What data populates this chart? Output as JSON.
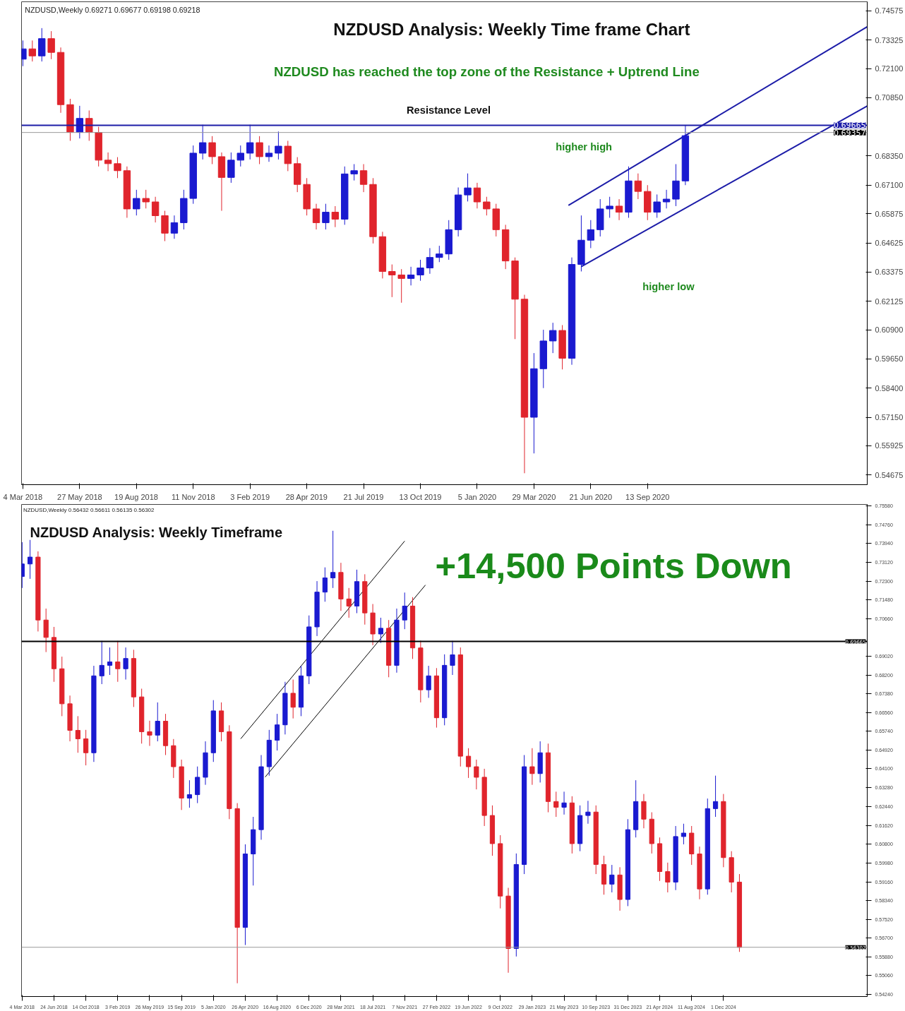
{
  "chart_data": [
    {
      "type": "candlestick",
      "title": "NZDUSD Analysis: Weekly Time frame Chart",
      "annotations": [
        "NZDUSD,Weekly  0.69271 0.69677 0.69198 0.69218",
        "NZDUSD has reached the top zone of the Resistance + Uptrend Line",
        "Resistance Level",
        "higher high",
        "higher low"
      ],
      "xlim": [
        "2018-03-02",
        "2021-08-04"
      ],
      "ylim": [
        0.5426,
        0.7496
      ],
      "xticks": [
        {
          "value": "2018-03-04",
          "label": "4 Mar 2018"
        },
        {
          "value": "2018-05-27",
          "label": "27 May 2018"
        },
        {
          "value": "2018-08-19",
          "label": "19 Aug 2018"
        },
        {
          "value": "2018-11-11",
          "label": "11 Nov 2018"
        },
        {
          "value": "2019-02-03",
          "label": "3 Feb 2019"
        },
        {
          "value": "2019-04-28",
          "label": "28 Apr 2019"
        },
        {
          "value": "2019-07-21",
          "label": "21 Jul 2019"
        },
        {
          "value": "2019-10-13",
          "label": "13 Oct 2019"
        },
        {
          "value": "2020-01-05",
          "label": "5 Jan 2020"
        },
        {
          "value": "2020-03-29",
          "label": "29 Mar 2020"
        },
        {
          "value": "2020-06-21",
          "label": "21 Jun 2020"
        },
        {
          "value": "2020-09-13",
          "label": "13 Sep 2020"
        }
      ],
      "yticks": [
        {
          "value": 0.74575,
          "label": "0.74575"
        },
        {
          "value": 0.73325,
          "label": "0.73325"
        },
        {
          "value": 0.721,
          "label": "0.72100"
        },
        {
          "value": 0.7085,
          "label": "0.70850"
        },
        {
          "value": 0.6835,
          "label": "0.68350"
        },
        {
          "value": 0.671,
          "label": "0.67100"
        },
        {
          "value": 0.65875,
          "label": "0.65875"
        },
        {
          "value": 0.64625,
          "label": "0.64625"
        },
        {
          "value": 0.63375,
          "label": "0.63375"
        },
        {
          "value": 0.62125,
          "label": "0.62125"
        },
        {
          "value": 0.609,
          "label": "0.60900"
        },
        {
          "value": 0.5965,
          "label": "0.59650"
        },
        {
          "value": 0.584,
          "label": "0.58400"
        },
        {
          "value": 0.5715,
          "label": "0.57150"
        },
        {
          "value": 0.55925,
          "label": "0.55925"
        },
        {
          "value": 0.54675,
          "label": "0.54675"
        }
      ],
      "ref_lines": [
        {
          "axis": "y",
          "value": 0.69665,
          "label": "0.69665",
          "color": "#1c1ca8"
        },
        {
          "axis": "y",
          "value": 0.69357,
          "label": "0.69357",
          "color": "#9a9a9a"
        }
      ],
      "series": [
        {
          "type": "line",
          "color": "#1c1ca8",
          "x": [
            "2020-05-19",
            "2021-08-04"
          ],
          "values": [
            0.6623,
            0.7389
          ]
        },
        {
          "type": "line",
          "color": "#1c1ca8",
          "x": [
            "2020-06-07",
            "2021-08-04"
          ],
          "values": [
            0.6361,
            0.7049
          ]
        }
      ],
      "x": [
        "2018-03-04",
        "2018-03-18",
        "2018-04-01",
        "2018-04-15",
        "2018-04-29",
        "2018-05-13",
        "2018-05-27",
        "2018-06-10",
        "2018-06-24",
        "2018-07-08",
        "2018-07-22",
        "2018-08-05",
        "2018-08-19",
        "2018-09-02",
        "2018-09-16",
        "2018-09-30",
        "2018-10-14",
        "2018-10-28",
        "2018-11-11",
        "2018-11-25",
        "2018-12-09",
        "2018-12-23",
        "2019-01-06",
        "2019-01-20",
        "2019-02-03",
        "2019-02-17",
        "2019-03-03",
        "2019-03-17",
        "2019-03-31",
        "2019-04-14",
        "2019-04-28",
        "2019-05-12",
        "2019-05-26",
        "2019-06-09",
        "2019-06-23",
        "2019-07-07",
        "2019-07-21",
        "2019-08-04",
        "2019-08-18",
        "2019-09-01",
        "2019-09-15",
        "2019-09-29",
        "2019-10-13",
        "2019-10-27",
        "2019-11-10",
        "2019-11-24",
        "2019-12-08",
        "2019-12-22",
        "2020-01-05",
        "2020-01-19",
        "2020-02-02",
        "2020-02-16",
        "2020-03-01",
        "2020-03-15",
        "2020-03-29",
        "2020-04-12",
        "2020-04-26",
        "2020-05-10",
        "2020-05-24",
        "2020-06-07",
        "2020-06-21",
        "2020-07-05",
        "2020-07-19",
        "2020-08-02",
        "2020-08-16",
        "2020-08-30",
        "2020-09-13",
        "2020-09-27",
        "2020-10-11",
        "2020-10-25",
        "2020-11-08"
      ],
      "ohlc": [
        [
          0.725,
          0.733,
          0.722,
          0.7294
        ],
        [
          0.7294,
          0.733,
          0.724,
          0.7264
        ],
        [
          0.7264,
          0.7383,
          0.724,
          0.7338
        ],
        [
          0.7338,
          0.737,
          0.725,
          0.7279
        ],
        [
          0.7279,
          0.73,
          0.702,
          0.7055
        ],
        [
          0.7055,
          0.708,
          0.69,
          0.6936
        ],
        [
          0.6936,
          0.705,
          0.691,
          0.6996
        ],
        [
          0.6996,
          0.703,
          0.69,
          0.6936
        ],
        [
          0.6936,
          0.696,
          0.679,
          0.6817
        ],
        [
          0.6817,
          0.685,
          0.677,
          0.6802
        ],
        [
          0.6802,
          0.683,
          0.674,
          0.6772
        ],
        [
          0.6772,
          0.679,
          0.657,
          0.6608
        ],
        [
          0.6608,
          0.669,
          0.658,
          0.6653
        ],
        [
          0.6653,
          0.669,
          0.661,
          0.6638
        ],
        [
          0.6638,
          0.666,
          0.655,
          0.6579
        ],
        [
          0.6579,
          0.66,
          0.647,
          0.6504
        ],
        [
          0.6504,
          0.658,
          0.648,
          0.6549
        ],
        [
          0.6549,
          0.669,
          0.652,
          0.6653
        ],
        [
          0.6653,
          0.688,
          0.663,
          0.6847
        ],
        [
          0.6847,
          0.6969,
          0.682,
          0.6892
        ],
        [
          0.6892,
          0.692,
          0.68,
          0.6832
        ],
        [
          0.6832,
          0.685,
          0.66,
          0.6743
        ],
        [
          0.6743,
          0.685,
          0.672,
          0.6817
        ],
        [
          0.6817,
          0.688,
          0.679,
          0.6847
        ],
        [
          0.6847,
          0.6969,
          0.682,
          0.6892
        ],
        [
          0.6892,
          0.692,
          0.68,
          0.6832
        ],
        [
          0.6832,
          0.688,
          0.681,
          0.6847
        ],
        [
          0.6847,
          0.694,
          0.682,
          0.6877
        ],
        [
          0.6877,
          0.69,
          0.677,
          0.6802
        ],
        [
          0.6802,
          0.683,
          0.668,
          0.6713
        ],
        [
          0.6713,
          0.674,
          0.658,
          0.6608
        ],
        [
          0.6608,
          0.663,
          0.652,
          0.6549
        ],
        [
          0.6549,
          0.663,
          0.652,
          0.6594
        ],
        [
          0.6594,
          0.662,
          0.653,
          0.6564
        ],
        [
          0.6564,
          0.679,
          0.654,
          0.6758
        ],
        [
          0.6758,
          0.68,
          0.673,
          0.6772
        ],
        [
          0.6772,
          0.68,
          0.668,
          0.6713
        ],
        [
          0.6713,
          0.674,
          0.646,
          0.6489
        ],
        [
          0.6489,
          0.651,
          0.631,
          0.634
        ],
        [
          0.634,
          0.637,
          0.623,
          0.6325
        ],
        [
          0.6325,
          0.635,
          0.6206,
          0.631
        ],
        [
          0.631,
          0.636,
          0.628,
          0.6325
        ],
        [
          0.6325,
          0.639,
          0.63,
          0.6355
        ],
        [
          0.6355,
          0.644,
          0.633,
          0.64
        ],
        [
          0.64,
          0.645,
          0.638,
          0.6415
        ],
        [
          0.6415,
          0.656,
          0.639,
          0.6519
        ],
        [
          0.6519,
          0.67,
          0.649,
          0.6668
        ],
        [
          0.6668,
          0.676,
          0.664,
          0.6698
        ],
        [
          0.6698,
          0.672,
          0.661,
          0.6638
        ],
        [
          0.6638,
          0.666,
          0.658,
          0.6608
        ],
        [
          0.6608,
          0.663,
          0.649,
          0.6519
        ],
        [
          0.6519,
          0.654,
          0.635,
          0.6385
        ],
        [
          0.6385,
          0.64,
          0.605,
          0.6221
        ],
        [
          0.6221,
          0.624,
          0.5475,
          0.5715
        ],
        [
          0.5715,
          0.599,
          0.556,
          0.5923
        ],
        [
          0.5923,
          0.609,
          0.584,
          0.6042
        ],
        [
          0.6042,
          0.612,
          0.599,
          0.6087
        ],
        [
          0.6087,
          0.611,
          0.592,
          0.5968
        ],
        [
          0.5968,
          0.64,
          0.594,
          0.637
        ],
        [
          0.637,
          0.658,
          0.634,
          0.6474
        ],
        [
          0.6474,
          0.656,
          0.644,
          0.6519
        ],
        [
          0.6519,
          0.665,
          0.649,
          0.6608
        ],
        [
          0.6608,
          0.666,
          0.657,
          0.662
        ],
        [
          0.662,
          0.665,
          0.656,
          0.6594
        ],
        [
          0.6594,
          0.679,
          0.657,
          0.6728
        ],
        [
          0.6728,
          0.676,
          0.665,
          0.6683
        ],
        [
          0.6683,
          0.671,
          0.656,
          0.6594
        ],
        [
          0.6594,
          0.667,
          0.657,
          0.6638
        ],
        [
          0.6638,
          0.669,
          0.661,
          0.665
        ],
        [
          0.665,
          0.68,
          0.662,
          0.6728
        ],
        [
          0.6728,
          0.6968,
          0.671,
          0.6922
        ]
      ]
    },
    {
      "type": "candlestick",
      "title": "NZDUSD Analysis: Weekly Timeframe",
      "annotations": [
        "NZDUSD,Weekly  0.56432 0.56611 0.56135 0.56302",
        "+14,500 Points Down"
      ],
      "xlim": [
        "2018-03-02",
        "2026-04-20"
      ],
      "ylim": [
        0.5415,
        0.7565
      ],
      "xticks": [
        {
          "value": "2018-03-04",
          "label": "4 Mar 2018"
        },
        {
          "value": "2018-06-24",
          "label": "24 Jun 2018"
        },
        {
          "value": "2018-10-14",
          "label": "14 Oct 2018"
        },
        {
          "value": "2019-02-03",
          "label": "3 Feb 2019"
        },
        {
          "value": "2019-05-26",
          "label": "26 May 2019"
        },
        {
          "value": "2019-09-15",
          "label": "15 Sep 2019"
        },
        {
          "value": "2020-01-05",
          "label": "5 Jan 2020"
        },
        {
          "value": "2020-04-26",
          "label": "26 Apr 2020"
        },
        {
          "value": "2020-08-16",
          "label": "16 Aug 2020"
        },
        {
          "value": "2020-12-06",
          "label": "6 Dec 2020"
        },
        {
          "value": "2021-03-28",
          "label": "28 Mar 2021"
        },
        {
          "value": "2021-07-18",
          "label": "18 Jul 2021"
        },
        {
          "value": "2021-11-07",
          "label": "7 Nov 2021"
        },
        {
          "value": "2022-02-27",
          "label": "27 Feb 2022"
        },
        {
          "value": "2022-06-19",
          "label": "19 Jun 2022"
        },
        {
          "value": "2022-10-09",
          "label": "9 Oct 2022"
        },
        {
          "value": "2023-01-29",
          "label": "29 Jan 2023"
        },
        {
          "value": "2023-05-21",
          "label": "21 May 2023"
        },
        {
          "value": "2023-09-10",
          "label": "10 Sep 2023"
        },
        {
          "value": "2023-12-31",
          "label": "31 Dec 2023"
        },
        {
          "value": "2024-04-21",
          "label": "21 Apr 2024"
        },
        {
          "value": "2024-08-11",
          "label": "11 Aug 2024"
        },
        {
          "value": "2024-12-01",
          "label": "1 Dec 2024"
        }
      ],
      "yticks": [
        {
          "value": 0.7558,
          "label": "0.75580"
        },
        {
          "value": 0.7476,
          "label": "0.74760"
        },
        {
          "value": 0.7394,
          "label": "0.73940"
        },
        {
          "value": 0.7312,
          "label": "0.73120"
        },
        {
          "value": 0.723,
          "label": "0.72300"
        },
        {
          "value": 0.7148,
          "label": "0.71480"
        },
        {
          "value": 0.7066,
          "label": "0.70660"
        },
        {
          "value": 0.6902,
          "label": "0.69020"
        },
        {
          "value": 0.682,
          "label": "0.68200"
        },
        {
          "value": 0.6738,
          "label": "0.67380"
        },
        {
          "value": 0.6656,
          "label": "0.66560"
        },
        {
          "value": 0.6574,
          "label": "0.65740"
        },
        {
          "value": 0.6492,
          "label": "0.64920"
        },
        {
          "value": 0.641,
          "label": "0.64100"
        },
        {
          "value": 0.6328,
          "label": "0.63280"
        },
        {
          "value": 0.6244,
          "label": "0.62440"
        },
        {
          "value": 0.6162,
          "label": "0.61620"
        },
        {
          "value": 0.608,
          "label": "0.60800"
        },
        {
          "value": 0.5998,
          "label": "0.59980"
        },
        {
          "value": 0.5916,
          "label": "0.59160"
        },
        {
          "value": 0.5834,
          "label": "0.58340"
        },
        {
          "value": 0.5752,
          "label": "0.57520"
        },
        {
          "value": 0.567,
          "label": "0.56700"
        },
        {
          "value": 0.5588,
          "label": "0.55880"
        },
        {
          "value": 0.5506,
          "label": "0.55060"
        },
        {
          "value": 0.5424,
          "label": "0.54240"
        }
      ],
      "ref_lines": [
        {
          "axis": "y",
          "value": 0.69665,
          "label": "0.69665",
          "color": "#000000"
        },
        {
          "axis": "y",
          "value": 0.56302,
          "label": "0.56302",
          "color": "#9a9a9a"
        }
      ],
      "series": [
        {
          "type": "line",
          "color": "#000000",
          "x": [
            "2020-04-10",
            "2021-11-07"
          ],
          "values": [
            0.6541,
            0.7405
          ]
        },
        {
          "type": "line",
          "color": "#000000",
          "x": [
            "2020-07-05",
            "2022-01-19"
          ],
          "values": [
            0.6374,
            0.7213
          ]
        }
      ],
      "x": [
        "2018-03-04",
        "2018-04-01",
        "2018-04-29",
        "2018-05-27",
        "2018-06-24",
        "2018-07-22",
        "2018-08-19",
        "2018-09-16",
        "2018-10-14",
        "2018-11-11",
        "2018-12-09",
        "2019-01-06",
        "2019-02-03",
        "2019-03-03",
        "2019-03-31",
        "2019-04-28",
        "2019-05-26",
        "2019-06-23",
        "2019-07-21",
        "2019-08-18",
        "2019-09-15",
        "2019-10-13",
        "2019-11-10",
        "2019-12-08",
        "2020-01-05",
        "2020-02-02",
        "2020-03-01",
        "2020-03-29",
        "2020-04-26",
        "2020-05-24",
        "2020-06-21",
        "2020-07-19",
        "2020-08-16",
        "2020-09-13",
        "2020-10-11",
        "2020-11-08",
        "2020-12-06",
        "2021-01-03",
        "2021-01-31",
        "2021-02-28",
        "2021-03-28",
        "2021-04-25",
        "2021-05-23",
        "2021-06-20",
        "2021-07-18",
        "2021-08-15",
        "2021-09-12",
        "2021-10-10",
        "2021-11-07",
        "2021-12-05",
        "2022-01-02",
        "2022-01-30",
        "2022-02-27",
        "2022-03-27",
        "2022-04-24",
        "2022-05-22",
        "2022-06-19",
        "2022-07-17",
        "2022-08-14",
        "2022-09-11",
        "2022-10-09",
        "2022-11-06",
        "2022-12-04",
        "2023-01-01",
        "2023-01-29",
        "2023-02-26",
        "2023-03-26",
        "2023-04-23",
        "2023-05-21",
        "2023-06-18",
        "2023-07-16",
        "2023-08-13",
        "2023-09-10",
        "2023-10-08",
        "2023-11-05",
        "2023-12-03",
        "2023-12-31",
        "2024-01-28",
        "2024-02-25",
        "2024-03-24",
        "2024-04-21",
        "2024-05-19",
        "2024-06-16",
        "2024-07-14",
        "2024-08-11",
        "2024-09-08",
        "2024-10-06",
        "2024-11-03",
        "2024-12-01",
        "2024-12-29",
        "2025-01-26"
      ],
      "ohlc": [
        [
          0.725,
          0.74,
          0.72,
          0.7305
        ],
        [
          0.7305,
          0.741,
          0.724,
          0.7335
        ],
        [
          0.7335,
          0.736,
          0.701,
          0.706
        ],
        [
          0.706,
          0.711,
          0.692,
          0.6984
        ],
        [
          0.6984,
          0.703,
          0.679,
          0.6847
        ],
        [
          0.6847,
          0.69,
          0.664,
          0.6694
        ],
        [
          0.6694,
          0.673,
          0.653,
          0.6578
        ],
        [
          0.6578,
          0.664,
          0.648,
          0.6541
        ],
        [
          0.6541,
          0.658,
          0.6425,
          0.648
        ],
        [
          0.648,
          0.686,
          0.644,
          0.6816
        ],
        [
          0.6816,
          0.6969,
          0.678,
          0.6862
        ],
        [
          0.6862,
          0.694,
          0.682,
          0.6877
        ],
        [
          0.6877,
          0.6969,
          0.679,
          0.6847
        ],
        [
          0.6847,
          0.694,
          0.68,
          0.6892
        ],
        [
          0.6892,
          0.693,
          0.668,
          0.6724
        ],
        [
          0.6724,
          0.676,
          0.652,
          0.6572
        ],
        [
          0.6572,
          0.662,
          0.651,
          0.6557
        ],
        [
          0.6557,
          0.67,
          0.653,
          0.6618
        ],
        [
          0.6618,
          0.665,
          0.647,
          0.6511
        ],
        [
          0.6511,
          0.654,
          0.637,
          0.6419
        ],
        [
          0.6419,
          0.645,
          0.623,
          0.6282
        ],
        [
          0.6282,
          0.636,
          0.624,
          0.6297
        ],
        [
          0.6297,
          0.642,
          0.626,
          0.6373
        ],
        [
          0.6373,
          0.653,
          0.634,
          0.648
        ],
        [
          0.648,
          0.671,
          0.644,
          0.6663
        ],
        [
          0.6663,
          0.67,
          0.653,
          0.6572
        ],
        [
          0.6572,
          0.66,
          0.619,
          0.6236
        ],
        [
          0.6236,
          0.626,
          0.5473,
          0.5717
        ],
        [
          0.5717,
          0.608,
          0.564,
          0.6038
        ],
        [
          0.6038,
          0.62,
          0.59,
          0.6144
        ],
        [
          0.6144,
          0.647,
          0.61,
          0.6419
        ],
        [
          0.6419,
          0.658,
          0.638,
          0.6535
        ],
        [
          0.6535,
          0.665,
          0.649,
          0.6602
        ],
        [
          0.6602,
          0.679,
          0.656,
          0.674
        ],
        [
          0.674,
          0.68,
          0.663,
          0.6679
        ],
        [
          0.6679,
          0.686,
          0.664,
          0.6816
        ],
        [
          0.6816,
          0.708,
          0.678,
          0.703
        ],
        [
          0.703,
          0.723,
          0.699,
          0.7182
        ],
        [
          0.7182,
          0.729,
          0.714,
          0.7244
        ],
        [
          0.7244,
          0.745,
          0.72,
          0.7268
        ],
        [
          0.7268,
          0.731,
          0.71,
          0.7152
        ],
        [
          0.7152,
          0.72,
          0.707,
          0.7121
        ],
        [
          0.7121,
          0.728,
          0.709,
          0.7228
        ],
        [
          0.7228,
          0.726,
          0.704,
          0.7091
        ],
        [
          0.7091,
          0.713,
          0.695,
          0.6999
        ],
        [
          0.6999,
          0.707,
          0.696,
          0.7024
        ],
        [
          0.7024,
          0.706,
          0.681,
          0.6862
        ],
        [
          0.6862,
          0.711,
          0.683,
          0.706
        ],
        [
          0.706,
          0.718,
          0.702,
          0.7121
        ],
        [
          0.7121,
          0.716,
          0.689,
          0.6938
        ],
        [
          0.6938,
          0.697,
          0.67,
          0.6755
        ],
        [
          0.6755,
          0.686,
          0.672,
          0.6816
        ],
        [
          0.6816,
          0.685,
          0.659,
          0.6633
        ],
        [
          0.6633,
          0.691,
          0.66,
          0.6862
        ],
        [
          0.6862,
          0.6969,
          0.682,
          0.6908
        ],
        [
          0.6908,
          0.694,
          0.642,
          0.6465
        ],
        [
          0.6465,
          0.65,
          0.637,
          0.6419
        ],
        [
          0.6419,
          0.645,
          0.632,
          0.6373
        ],
        [
          0.6373,
          0.641,
          0.616,
          0.6206
        ],
        [
          0.6206,
          0.625,
          0.603,
          0.6083
        ],
        [
          0.6083,
          0.612,
          0.58,
          0.5854
        ],
        [
          0.5854,
          0.589,
          0.5519,
          0.5625
        ],
        [
          0.5625,
          0.604,
          0.559,
          0.5992
        ],
        [
          0.5992,
          0.647,
          0.595,
          0.6419
        ],
        [
          0.6419,
          0.65,
          0.634,
          0.6389
        ],
        [
          0.6389,
          0.653,
          0.635,
          0.648
        ],
        [
          0.648,
          0.652,
          0.622,
          0.6267
        ],
        [
          0.6267,
          0.631,
          0.62,
          0.6242
        ],
        [
          0.6242,
          0.631,
          0.621,
          0.6261
        ],
        [
          0.6261,
          0.629,
          0.604,
          0.6083
        ],
        [
          0.6083,
          0.625,
          0.605,
          0.6206
        ],
        [
          0.6206,
          0.627,
          0.617,
          0.6221
        ],
        [
          0.6221,
          0.625,
          0.595,
          0.5992
        ],
        [
          0.5992,
          0.603,
          0.586,
          0.5906
        ],
        [
          0.5906,
          0.599,
          0.587,
          0.5946
        ],
        [
          0.5946,
          0.598,
          0.579,
          0.5839
        ],
        [
          0.5839,
          0.619,
          0.581,
          0.6144
        ],
        [
          0.6144,
          0.636,
          0.611,
          0.6267
        ],
        [
          0.6267,
          0.63,
          0.615,
          0.619
        ],
        [
          0.619,
          0.622,
          0.604,
          0.6083
        ],
        [
          0.6083,
          0.611,
          0.592,
          0.5961
        ],
        [
          0.5961,
          0.6,
          0.587,
          0.5915
        ],
        [
          0.5915,
          0.616,
          0.588,
          0.6114
        ],
        [
          0.6114,
          0.617,
          0.608,
          0.6129
        ],
        [
          0.6129,
          0.616,
          0.599,
          0.6038
        ],
        [
          0.6038,
          0.607,
          0.584,
          0.5885
        ],
        [
          0.5885,
          0.628,
          0.586,
          0.6236
        ],
        [
          0.6236,
          0.638,
          0.62,
          0.6267
        ],
        [
          0.6267,
          0.63,
          0.598,
          0.6022
        ],
        [
          0.6022,
          0.605,
          0.587,
          0.5915
        ],
        [
          0.5915,
          0.595,
          0.561,
          0.563
        ]
      ]
    }
  ]
}
